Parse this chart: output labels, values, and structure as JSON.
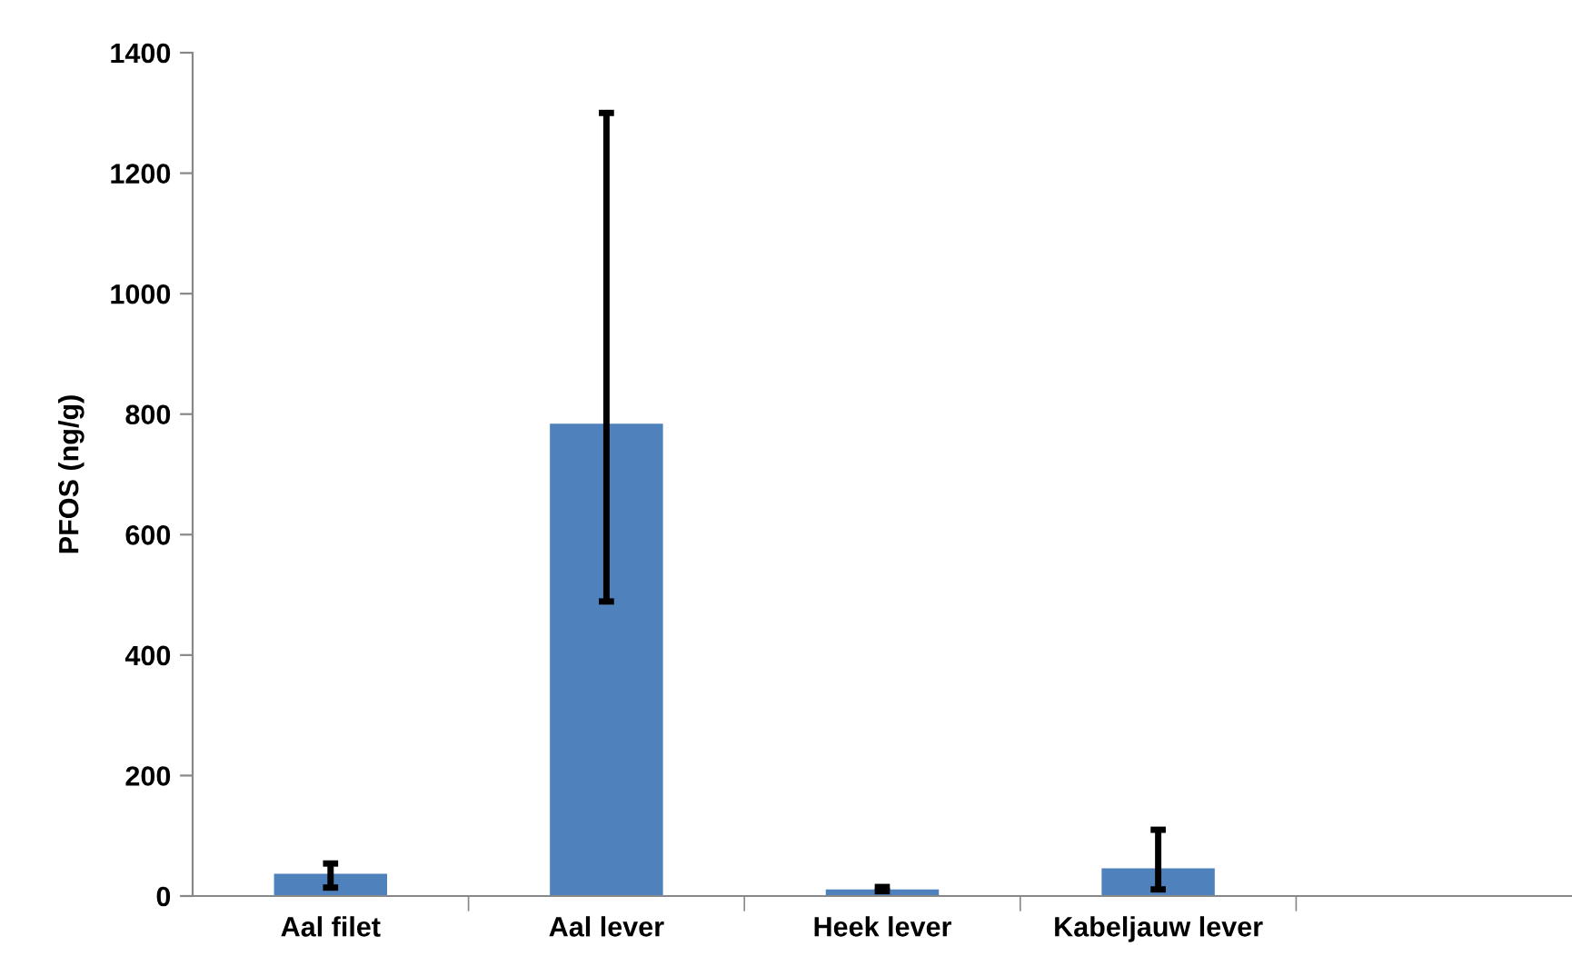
{
  "chart_data": {
    "type": "bar",
    "ylabel": "PFOS (ng/g)",
    "categories": [
      "Aal filet",
      "Aal lever",
      "Heek lever",
      "Kabeljauw lever",
      null
    ],
    "values": [
      37,
      784,
      11,
      46,
      null
    ],
    "errors": [
      [
        14,
        54
      ],
      [
        489,
        1300
      ],
      [
        8,
        15
      ],
      [
        11,
        110
      ],
      null
    ],
    "color": "#4f81bd",
    "ylim": [
      0,
      1400
    ],
    "yticks": [
      0,
      200,
      400,
      600,
      800,
      1000,
      1200,
      1400
    ],
    "grid": false,
    "legend": false
  }
}
